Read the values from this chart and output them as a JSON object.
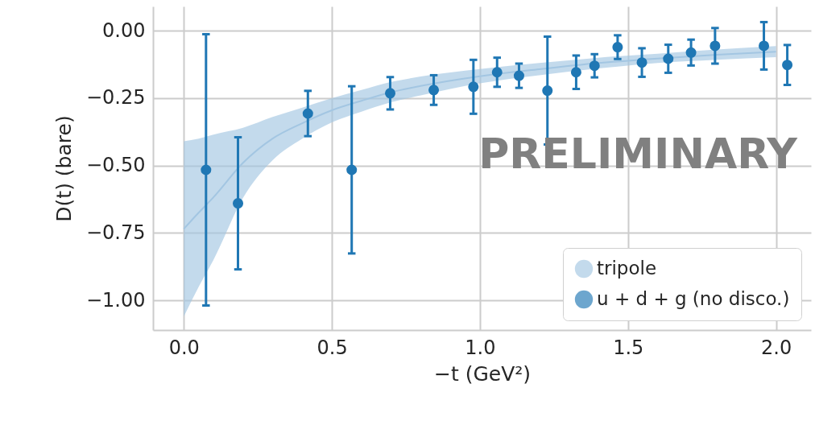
{
  "chart_data": {
    "type": "scatter",
    "xlabel": "−t (GeV²)",
    "ylabel": "D(t)  (bare)",
    "annotations": [
      "PRELIMINARY"
    ],
    "xlim": [
      -0.104,
      2.118
    ],
    "ylim": [
      -1.11,
      0.09
    ],
    "xticks": [
      {
        "value": 0,
        "label": "0.0"
      },
      {
        "value": 0.5,
        "label": "0.5"
      },
      {
        "value": 1,
        "label": "1.0"
      },
      {
        "value": 1.5,
        "label": "1.5"
      },
      {
        "value": 2,
        "label": "2.0"
      }
    ],
    "yticks": [
      {
        "value": 0,
        "label": "0.00"
      },
      {
        "value": -0.25,
        "label": "−0.25"
      },
      {
        "value": -0.5,
        "label": "−0.50"
      },
      {
        "value": -0.75,
        "label": "−0.75"
      },
      {
        "value": -1,
        "label": "−1.00"
      }
    ],
    "grid": true,
    "legend": "bottom right",
    "series": [
      {
        "name": "tripole",
        "type": "line",
        "color": "#a3c6e2",
        "x": [
          0,
          0.05,
          0.1,
          0.2,
          0.3,
          0.4,
          0.5,
          0.6,
          0.7,
          0.8,
          1.0,
          1.2,
          1.4,
          1.6,
          1.8,
          2.0
        ],
        "values": [
          -0.735,
          -0.675,
          -0.618,
          -0.49,
          -0.4,
          -0.343,
          -0.295,
          -0.26,
          -0.228,
          -0.205,
          -0.169,
          -0.143,
          -0.12,
          -0.103,
          -0.089,
          -0.078
        ],
        "upper": [
          -0.41,
          -0.4,
          -0.385,
          -0.36,
          -0.32,
          -0.285,
          -0.25,
          -0.22,
          -0.19,
          -0.17,
          -0.142,
          -0.12,
          -0.1,
          -0.085,
          -0.07,
          -0.057
        ],
        "lower": [
          -1.06,
          -0.95,
          -0.85,
          -0.62,
          -0.48,
          -0.4,
          -0.34,
          -0.3,
          -0.265,
          -0.24,
          -0.195,
          -0.165,
          -0.14,
          -0.12,
          -0.108,
          -0.098
        ]
      },
      {
        "name": "u + d + g (no disco.)",
        "type": "scatter",
        "marker": "circle",
        "color": "#1f77b4",
        "x": [
          0.075,
          0.183,
          0.419,
          0.567,
          0.697,
          0.844,
          0.978,
          1.058,
          1.132,
          1.228,
          1.325,
          1.387,
          1.465,
          1.547,
          1.636,
          1.713,
          1.794,
          1.959,
          2.038
        ],
        "values": [
          -0.516,
          -0.64,
          -0.307,
          -0.516,
          -0.232,
          -0.22,
          -0.208,
          -0.154,
          -0.167,
          -0.222,
          -0.154,
          -0.13,
          -0.061,
          -0.118,
          -0.104,
          -0.081,
          -0.056,
          -0.056,
          -0.127
        ],
        "errors": [
          0.503,
          0.245,
          0.084,
          0.31,
          0.06,
          0.055,
          0.1,
          0.054,
          0.045,
          0.2,
          0.062,
          0.043,
          0.044,
          0.053,
          0.052,
          0.048,
          0.066,
          0.088,
          0.074
        ]
      }
    ]
  }
}
